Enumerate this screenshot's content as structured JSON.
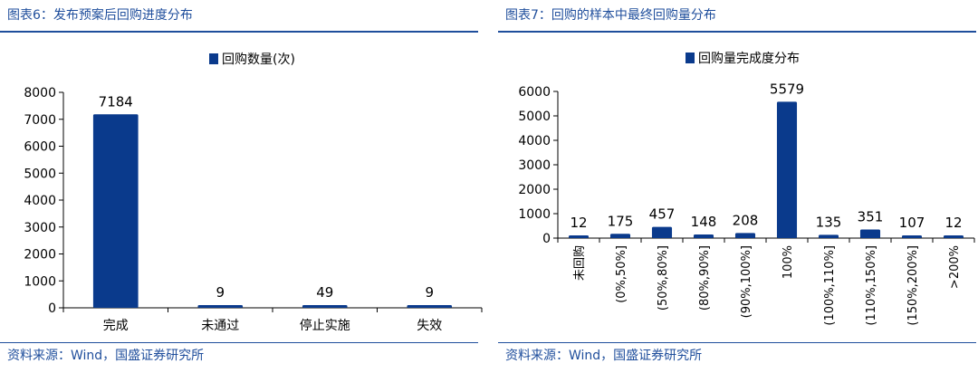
{
  "charts": [
    {
      "caption": "图表6：发布预案后回购进度分布",
      "source": "资料来源：Wind，国盛证券研究所",
      "color": "#0a3a8c",
      "chart_data": {
        "type": "bar",
        "legend": "回购数量(次)",
        "categories": [
          "完成",
          "未通过",
          "停止实施",
          "失效"
        ],
        "values": [
          7184,
          9,
          49,
          9
        ],
        "yticks": [
          "8000",
          "7000",
          "6000",
          "5000",
          "4000",
          "3000",
          "2000",
          "1000",
          "0"
        ],
        "ylim": [
          0,
          8000
        ],
        "grid": false,
        "legend_position": "top-center"
      }
    },
    {
      "caption": "图表7：回购的样本中最终回购量分布",
      "source": "资料来源：Wind，国盛证券研究所",
      "color": "#0a3a8c",
      "chart_data": {
        "type": "bar",
        "legend": "回购量完成度分布",
        "categories": [
          "未回购",
          "(0%,50%]",
          "(50%,80%]",
          "(80%,90%]",
          "(90%,100%]",
          "100%",
          "(100%,110%]",
          "(110%,150%]",
          "(150%,200%]",
          ">200%"
        ],
        "values": [
          12,
          175,
          457,
          148,
          208,
          5579,
          135,
          351,
          107,
          12
        ],
        "yticks": [
          "6000",
          "5000",
          "4000",
          "3000",
          "2000",
          "1000",
          "0"
        ],
        "ylim": [
          0,
          6000
        ],
        "grid": false,
        "legend_position": "top-center"
      }
    }
  ]
}
